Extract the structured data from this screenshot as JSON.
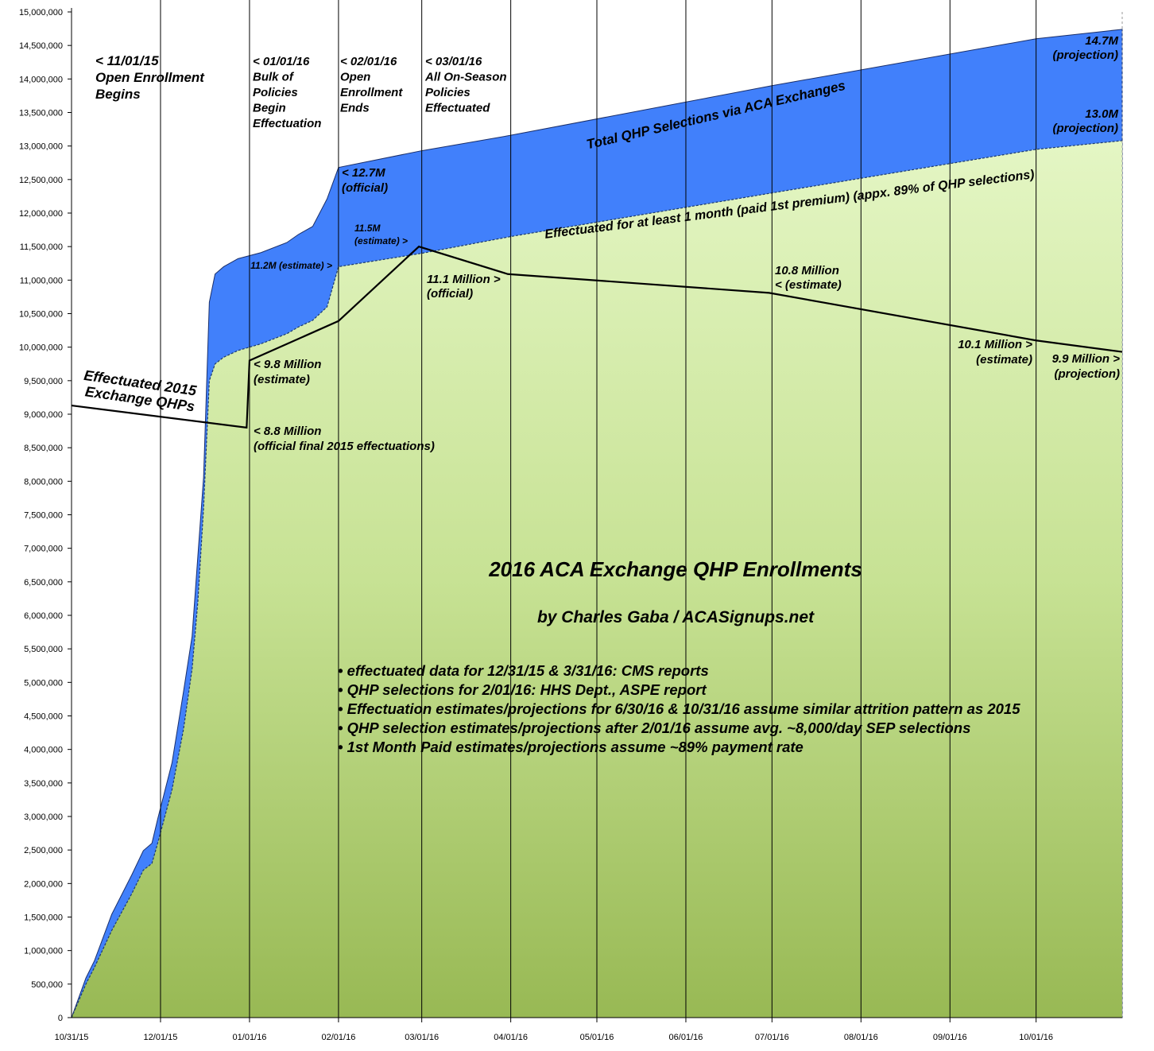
{
  "chart_data": {
    "type": "area",
    "title": "2016 ACA Exchange QHP Enrollments",
    "subtitle": "by Charles Gaba / ACASignups.net",
    "notes": [
      "• effectuated data for 12/31/15 & 3/31/16: CMS reports",
      "• QHP selections for 2/01/16: HHS Dept., ASPE report",
      "• Effectuation estimates/projections for 6/30/16 & 10/31/16 assume similar attrition pattern as 2015",
      "• QHP selection estimates/projections after 2/01/16 assume avg. ~8,000/day SEP selections",
      "• 1st Month Paid estimates/projections assume ~89% payment rate"
    ],
    "xlim": [
      "2015-10-31",
      "2016-10-31"
    ],
    "xticks": [
      {
        "value": "2015-10-31",
        "label": "10/31/15"
      },
      {
        "value": "2015-12-01",
        "label": "12/01/15"
      },
      {
        "value": "2016-01-01",
        "label": "01/01/16"
      },
      {
        "value": "2016-02-01",
        "label": "02/01/16"
      },
      {
        "value": "2016-03-01",
        "label": "03/01/16"
      },
      {
        "value": "2016-04-01",
        "label": "04/01/16"
      },
      {
        "value": "2016-05-01",
        "label": "05/01/16"
      },
      {
        "value": "2016-06-01",
        "label": "06/01/16"
      },
      {
        "value": "2016-07-01",
        "label": "07/01/16"
      },
      {
        "value": "2016-08-01",
        "label": "08/01/16"
      },
      {
        "value": "2016-09-01",
        "label": "09/01/16"
      },
      {
        "value": "2016-10-01",
        "label": "10/01/16"
      }
    ],
    "ylim": [
      0,
      15000000
    ],
    "yticks": [
      0,
      {
        "value": 500000,
        "label": "500,000"
      },
      {
        "value": 1000000,
        "label": "1,000,000"
      },
      {
        "value": 1500000,
        "label": "1,500,000"
      },
      {
        "value": 2000000,
        "label": "2,000,000"
      },
      {
        "value": 2500000,
        "label": "2,500,000"
      },
      {
        "value": 3000000,
        "label": "3,000,000"
      },
      {
        "value": 3500000,
        "label": "3,500,000"
      },
      {
        "value": 4000000,
        "label": "4,000,000"
      },
      {
        "value": 4500000,
        "label": "4,500,000"
      },
      {
        "value": 5000000,
        "label": "5,000,000"
      },
      {
        "value": 5500000,
        "label": "5,500,000"
      },
      {
        "value": 6000000,
        "label": "6,000,000"
      },
      {
        "value": 6500000,
        "label": "6,500,000"
      },
      {
        "value": 7000000,
        "label": "7,000,000"
      },
      {
        "value": 7500000,
        "label": "7,500,000"
      },
      {
        "value": 8000000,
        "label": "8,000,000"
      },
      {
        "value": 8500000,
        "label": "8,500,000"
      },
      {
        "value": 9000000,
        "label": "9,000,000"
      },
      {
        "value": 9500000,
        "label": "9,500,000"
      },
      {
        "value": 10000000,
        "label": "10,000,000"
      },
      {
        "value": 10500000,
        "label": "10,500,000"
      },
      {
        "value": 11000000,
        "label": "11,000,000"
      },
      {
        "value": 11500000,
        "label": "11,500,000"
      },
      {
        "value": 12000000,
        "label": "12,000,000"
      },
      {
        "value": 12500000,
        "label": "12,500,000"
      },
      {
        "value": 13000000,
        "label": "13,000,000"
      },
      {
        "value": 13500000,
        "label": "13,500,000"
      },
      {
        "value": 14000000,
        "label": "14,000,000"
      },
      {
        "value": 14500000,
        "label": "14,500,000"
      },
      {
        "value": 15000000,
        "label": "15,000,000"
      }
    ],
    "series": [
      {
        "name": "Total QHP Selections via ACA Exchanges",
        "color": "#4180fb",
        "x": [
          "2015-10-31",
          "2015-11-05",
          "2015-11-08",
          "2015-11-14",
          "2015-11-21",
          "2015-11-25",
          "2015-11-28",
          "2015-11-30",
          "2015-12-05",
          "2015-12-09",
          "2015-12-12",
          "2015-12-14",
          "2015-12-16",
          "2015-12-18",
          "2015-12-20",
          "2015-12-23",
          "2015-12-28",
          "2016-01-05",
          "2016-01-14",
          "2016-01-18",
          "2016-01-23",
          "2016-01-28",
          "2016-02-01",
          "2016-03-01",
          "2016-04-01",
          "2016-07-01",
          "2016-10-01",
          "2016-10-31"
        ],
        "values": [
          0,
          590000,
          850000,
          1540000,
          2130000,
          2490000,
          2600000,
          2960000,
          3800000,
          4860000,
          5690000,
          6880000,
          8060000,
          10670000,
          11090000,
          11200000,
          11320000,
          11410000,
          11560000,
          11680000,
          11800000,
          12210000,
          12680000,
          12930000,
          13160000,
          13900000,
          14600000,
          14740000
        ]
      },
      {
        "name": "Effectuated for at least 1 month (paid 1st premium) (appx. 89% of QHP selections)",
        "color": "#c9e59a",
        "x": [
          "2015-10-31",
          "2015-11-05",
          "2015-11-08",
          "2015-11-14",
          "2015-11-21",
          "2015-11-25",
          "2015-11-28",
          "2015-11-30",
          "2015-12-05",
          "2015-12-09",
          "2015-12-12",
          "2015-12-14",
          "2015-12-16",
          "2015-12-18",
          "2015-12-20",
          "2015-12-23",
          "2015-12-28",
          "2016-01-05",
          "2016-01-14",
          "2016-01-18",
          "2016-01-23",
          "2016-01-28",
          "2016-02-01",
          "2016-03-01",
          "2016-04-01",
          "2016-07-01",
          "2016-10-01",
          "2016-10-31"
        ],
        "values": [
          0,
          500000,
          750000,
          1300000,
          1850000,
          2200000,
          2300000,
          2600000,
          3400000,
          4300000,
          5200000,
          6200000,
          7600000,
          9500000,
          9750000,
          9850000,
          9950000,
          10050000,
          10200000,
          10300000,
          10400000,
          10600000,
          11200000,
          11400000,
          11650000,
          12300000,
          12950000,
          13080000
        ]
      },
      {
        "name": "Effectuated 2015 Exchange QHPs",
        "color": "#000000",
        "style": "line",
        "x": [
          "2015-10-31",
          "2015-12-31",
          "2016-01-01",
          "2016-02-01",
          "2016-02-29",
          "2016-03-31",
          "2016-06-30",
          "2016-10-01",
          "2016-10-31"
        ],
        "values": [
          9130000,
          8800000,
          9800000,
          10390000,
          11500000,
          11090000,
          10810000,
          10100000,
          9930000
        ]
      }
    ],
    "annotations": [
      [
        "< 11/01/15",
        "Open Enrollment",
        "Begins"
      ],
      [
        "< 01/01/16",
        "Bulk of",
        "Policies",
        "Begin",
        "Effectuation"
      ],
      [
        "< 02/01/16",
        "Open",
        "Enrollment",
        "Ends"
      ],
      [
        "< 03/01/16",
        "All On-Season",
        "Policies",
        "Effectuated"
      ],
      [
        "< 12.7M",
        "(official)"
      ],
      [
        "11.2M (estimate) >"
      ],
      [
        "11.5M",
        "(estimate) >"
      ],
      [
        "11.1 Million >",
        "(official)"
      ],
      [
        "10.8 Million",
        "< (estimate)"
      ],
      [
        "< 9.8 Million",
        "(estimate)"
      ],
      [
        "< 8.8 Million",
        "(official final 2015 effectuations)"
      ],
      [
        "10.1 Million >",
        "(estimate)"
      ],
      [
        "9.9 Million >",
        "(projection)"
      ],
      [
        "14.7M",
        "(projection)"
      ],
      [
        "13.0M",
        "(projection)"
      ]
    ]
  }
}
